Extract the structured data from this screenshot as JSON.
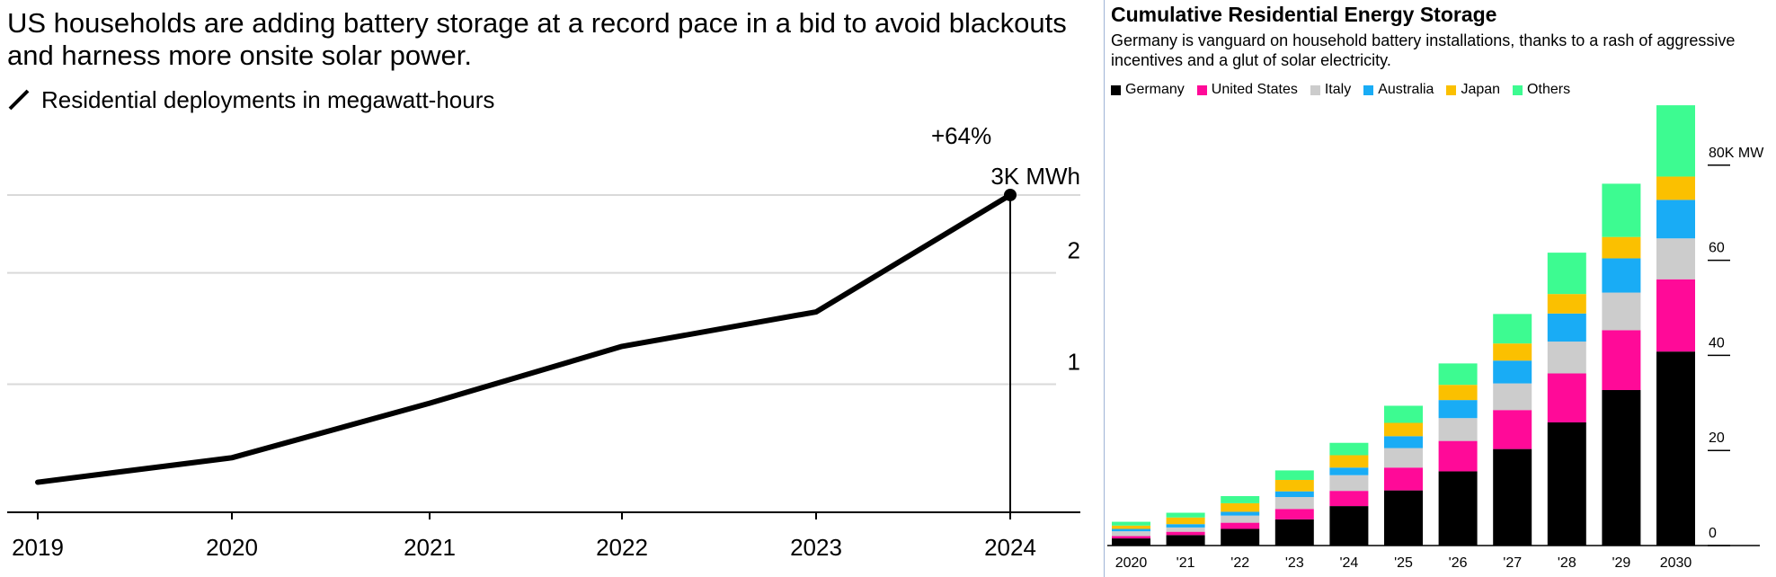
{
  "left": {
    "headline": "US households are adding battery storage at a record pace in a bid to avoid blackouts and harness more onsite solar power.",
    "legend_label": "Residential deployments in megawatt-hours",
    "annotation_change": "+64%",
    "annotation_value": "3K MWh",
    "line_color": "#000000"
  },
  "right": {
    "title": "Cumulative Residential Energy Storage",
    "subtitle": "Germany is vanguard on household battery installations, thanks to a rash of aggressive incentives and a glut of solar electricity.",
    "legend": [
      {
        "name": "Germany",
        "color": "#000000"
      },
      {
        "name": "United States",
        "color": "#ff0a98"
      },
      {
        "name": "Italy",
        "color": "#cccccc"
      },
      {
        "name": "Australia",
        "color": "#19acf5"
      },
      {
        "name": "Japan",
        "color": "#fbc000"
      },
      {
        "name": "Others",
        "color": "#3dfb91"
      }
    ]
  },
  "chart_data": [
    {
      "type": "line",
      "title": "",
      "xlabel": "",
      "ylabel": "Residential deployments in megawatt-hours",
      "x": [
        "2019",
        "2020",
        "2021",
        "2022",
        "2023",
        "2024"
      ],
      "series": [
        {
          "name": "Residential deployments in megawatt-hours",
          "values": [
            0.12,
            0.34,
            0.83,
            1.34,
            1.65,
            2.7
          ]
        }
      ],
      "ylim": [
        -0.15,
        2.95
      ],
      "yticks": [
        {
          "value": 1,
          "label": "1"
        },
        {
          "value": 2,
          "label": "2"
        },
        {
          "value": 2.7,
          "label": "3K MWh"
        }
      ],
      "grid": true
    },
    {
      "type": "bar",
      "stacked": true,
      "title": "Cumulative Residential Energy Storage",
      "subtitle": "Germany is vanguard on household battery installations, thanks to a rash of aggressive incentives and a glut of solar electricity.",
      "categories": [
        "2020",
        "'21",
        "'22",
        "'23",
        "'24",
        "'25",
        "'26",
        "'27",
        "'28",
        "'29",
        "2030"
      ],
      "series": [
        {
          "name": "Germany",
          "values": [
            1.5,
            2.2,
            3.5,
            5.5,
            8.3,
            11.6,
            15.6,
            20.3,
            25.9,
            32.7,
            40.8
          ]
        },
        {
          "name": "United States",
          "values": [
            0.5,
            0.7,
            1.3,
            2.2,
            3.2,
            4.8,
            6.4,
            8.2,
            10.3,
            12.6,
            15.2
          ]
        },
        {
          "name": "Italy",
          "values": [
            1.0,
            0.9,
            1.5,
            2.5,
            3.3,
            4.1,
            4.8,
            5.6,
            6.7,
            7.9,
            8.6
          ]
        },
        {
          "name": "Australia",
          "values": [
            0.5,
            0.7,
            0.8,
            1.2,
            1.6,
            2.5,
            3.8,
            4.8,
            5.9,
            7.2,
            8.1
          ]
        },
        {
          "name": "Japan",
          "values": [
            0.7,
            1.4,
            1.8,
            2.4,
            2.6,
            2.8,
            3.2,
            3.6,
            4.1,
            4.5,
            4.9
          ]
        },
        {
          "name": "Others",
          "values": [
            0.8,
            1.0,
            1.5,
            2.0,
            2.6,
            3.6,
            4.5,
            6.2,
            8.7,
            11.2,
            15.0
          ]
        }
      ],
      "ylim": [
        0,
        93
      ],
      "yticks": [
        {
          "value": 0,
          "label": "0"
        },
        {
          "value": 20,
          "label": "20"
        },
        {
          "value": 40,
          "label": "40"
        },
        {
          "value": 60,
          "label": "60"
        },
        {
          "value": 80,
          "label": "80K MW"
        }
      ],
      "grid": false
    }
  ]
}
